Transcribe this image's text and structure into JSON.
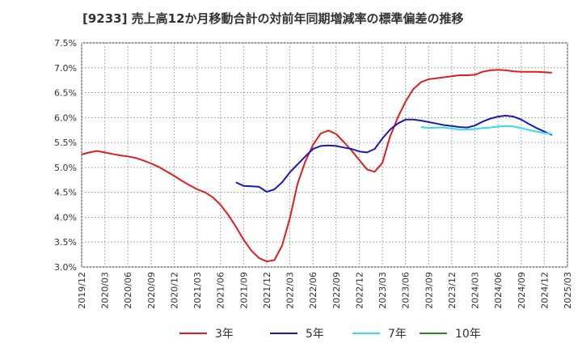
{
  "chart_data": {
    "type": "line",
    "title": "[9233]  売上高12か月移動合計の対前年同期増減率の標準偏差の推移",
    "xlabel": "",
    "ylabel": "",
    "ylim": [
      3.0,
      7.5
    ],
    "y_ticks": [
      "7.5%",
      "7.0%",
      "6.5%",
      "6.0%",
      "5.5%",
      "5.0%",
      "4.5%",
      "4.0%",
      "3.5%",
      "3.0%"
    ],
    "x_ticks": [
      "2019/12",
      "2020/03",
      "2020/06",
      "2020/09",
      "2020/12",
      "2021/03",
      "2021/06",
      "2021/09",
      "2021/12",
      "2022/03",
      "2022/06",
      "2022/09",
      "2022/12",
      "2023/03",
      "2023/06",
      "2023/09",
      "2023/12",
      "2024/03",
      "2024/06",
      "2024/09",
      "2024/12",
      "2025/03"
    ],
    "grid": true,
    "legend_position": "bottom",
    "series": [
      {
        "name": "3年",
        "color": "#dd1f1f",
        "start": "2019/12",
        "values": [
          5.26,
          5.3,
          5.33,
          5.3,
          5.27,
          5.24,
          5.22,
          5.19,
          5.14,
          5.08,
          5.01,
          4.92,
          4.83,
          4.73,
          4.64,
          4.56,
          4.5,
          4.4,
          4.25,
          4.05,
          3.81,
          3.55,
          3.33,
          3.18,
          3.11,
          3.14,
          3.43,
          3.98,
          4.67,
          5.12,
          5.45,
          5.68,
          5.74,
          5.67,
          5.51,
          5.34,
          5.15,
          4.96,
          4.91,
          5.09,
          5.62,
          6.0,
          6.32,
          6.57,
          6.71,
          6.77,
          6.79,
          6.81,
          6.83,
          6.85,
          6.85,
          6.86,
          6.92,
          6.95,
          6.96,
          6.95,
          6.93,
          6.92,
          6.92,
          6.92,
          6.91,
          6.9
        ]
      },
      {
        "name": "5年",
        "color": "#1a1ab4",
        "start": "2021/08",
        "values": [
          4.7,
          4.63,
          4.62,
          4.61,
          4.51,
          4.56,
          4.7,
          4.9,
          5.06,
          5.22,
          5.37,
          5.43,
          5.44,
          5.43,
          5.4,
          5.37,
          5.32,
          5.3,
          5.37,
          5.58,
          5.76,
          5.88,
          5.96,
          5.96,
          5.94,
          5.91,
          5.88,
          5.85,
          5.83,
          5.81,
          5.8,
          5.84,
          5.92,
          5.98,
          6.02,
          6.04,
          6.02,
          5.96,
          5.87,
          5.79,
          5.72,
          5.65
        ]
      },
      {
        "name": "7年",
        "color": "#33ddee",
        "start": "2023/08",
        "values": [
          5.81,
          5.79,
          5.8,
          5.8,
          5.78,
          5.76,
          5.76,
          5.77,
          5.79,
          5.8,
          5.82,
          5.83,
          5.82,
          5.79,
          5.75,
          5.72,
          5.69,
          5.67
        ]
      },
      {
        "name": "10年",
        "color": "#228b22",
        "start": "",
        "values": []
      }
    ]
  }
}
